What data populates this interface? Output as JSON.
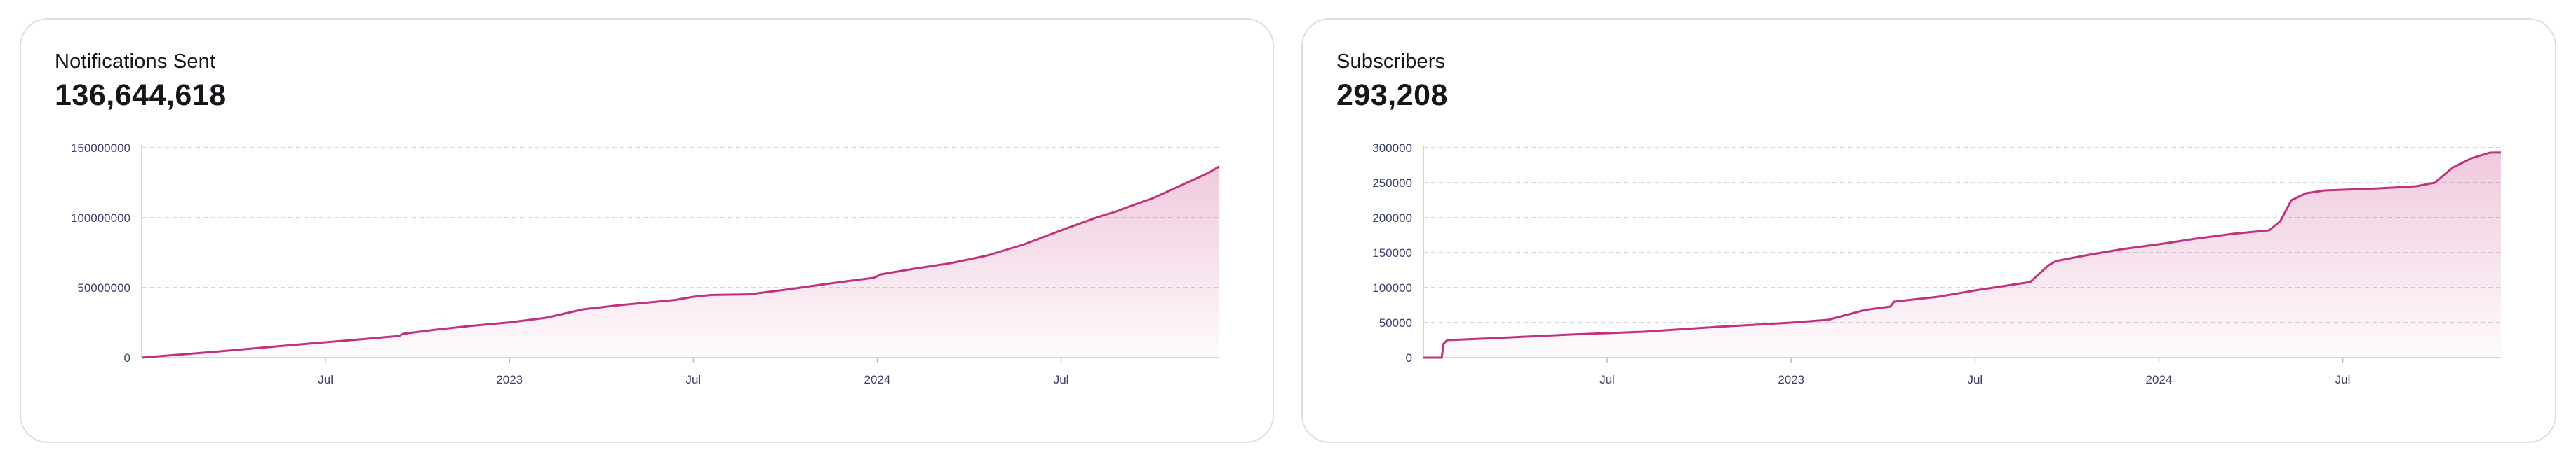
{
  "chart_data": [
    {
      "type": "area",
      "title": "Notifications Sent",
      "headline_value": "136,644,618",
      "ylim": [
        0,
        150000000
      ],
      "y_ticks": [
        0,
        50000000,
        100000000,
        150000000
      ],
      "y_tick_labels": [
        "0",
        "50000000",
        "100000000",
        "150000000"
      ],
      "xlim": [
        0,
        29.3
      ],
      "x_ticks": [
        {
          "x": 5,
          "label": "Jul"
        },
        {
          "x": 10,
          "label": "2023"
        },
        {
          "x": 15,
          "label": "Jul"
        },
        {
          "x": 20,
          "label": "2024"
        },
        {
          "x": 25,
          "label": "Jul"
        }
      ],
      "x_axis_unit": "months since 2022-02",
      "grid": true,
      "color": "#c2317d",
      "x": [
        0,
        2,
        4,
        6,
        7,
        7.1,
        8,
        9,
        10,
        11,
        11.5,
        12,
        13,
        14.5,
        15,
        15.5,
        16.5,
        17.5,
        19,
        19.9,
        20.1,
        21,
        22,
        23,
        24,
        25,
        26,
        26.5,
        26.8,
        27.5,
        28,
        28.5,
        29,
        29.3
      ],
      "values": [
        0,
        4200000,
        8800000,
        13200000,
        15500000,
        17000000,
        20000000,
        22800000,
        25200000,
        28500000,
        31500000,
        34500000,
        37500000,
        41200000,
        43500000,
        44800000,
        45200000,
        48500000,
        54000000,
        57000000,
        59500000,
        63500000,
        67500000,
        73000000,
        81000000,
        91000000,
        100500000,
        104500000,
        107500000,
        114000000,
        120000000,
        126000000,
        132000000,
        136644618
      ]
    },
    {
      "type": "area",
      "title": "Subscribers",
      "headline_value": "293,208",
      "ylim": [
        0,
        300000
      ],
      "y_ticks": [
        0,
        50000,
        100000,
        150000,
        200000,
        250000,
        300000
      ],
      "y_tick_labels": [
        "0",
        "50000",
        "100000",
        "150000",
        "200000",
        "250000",
        "300000"
      ],
      "xlim": [
        0,
        29.3
      ],
      "x_ticks": [
        {
          "x": 5,
          "label": "Jul"
        },
        {
          "x": 10,
          "label": "2023"
        },
        {
          "x": 15,
          "label": "Jul"
        },
        {
          "x": 20,
          "label": "2024"
        },
        {
          "x": 25,
          "label": "Jul"
        }
      ],
      "x_axis_unit": "months since 2022-02",
      "grid": true,
      "color": "#c2317d",
      "x": [
        0,
        0.5,
        0.55,
        0.65,
        2,
        4,
        6,
        8,
        10,
        11,
        12,
        12.7,
        12.8,
        14,
        15,
        16,
        16.5,
        17,
        17.2,
        18,
        19,
        20,
        21,
        22,
        23,
        23.3,
        23.6,
        24,
        24.5,
        25,
        26,
        27,
        27.5,
        28,
        28.5,
        29,
        29.3
      ],
      "values": [
        0,
        0,
        20000,
        25000,
        28000,
        33000,
        37000,
        44000,
        50000,
        54000,
        68000,
        73000,
        80000,
        87000,
        96000,
        104000,
        108000,
        132000,
        138000,
        146000,
        155000,
        162000,
        170000,
        177000,
        182000,
        195000,
        225000,
        235000,
        239000,
        240000,
        242000,
        245000,
        250000,
        272000,
        285000,
        293000,
        293208
      ]
    }
  ]
}
